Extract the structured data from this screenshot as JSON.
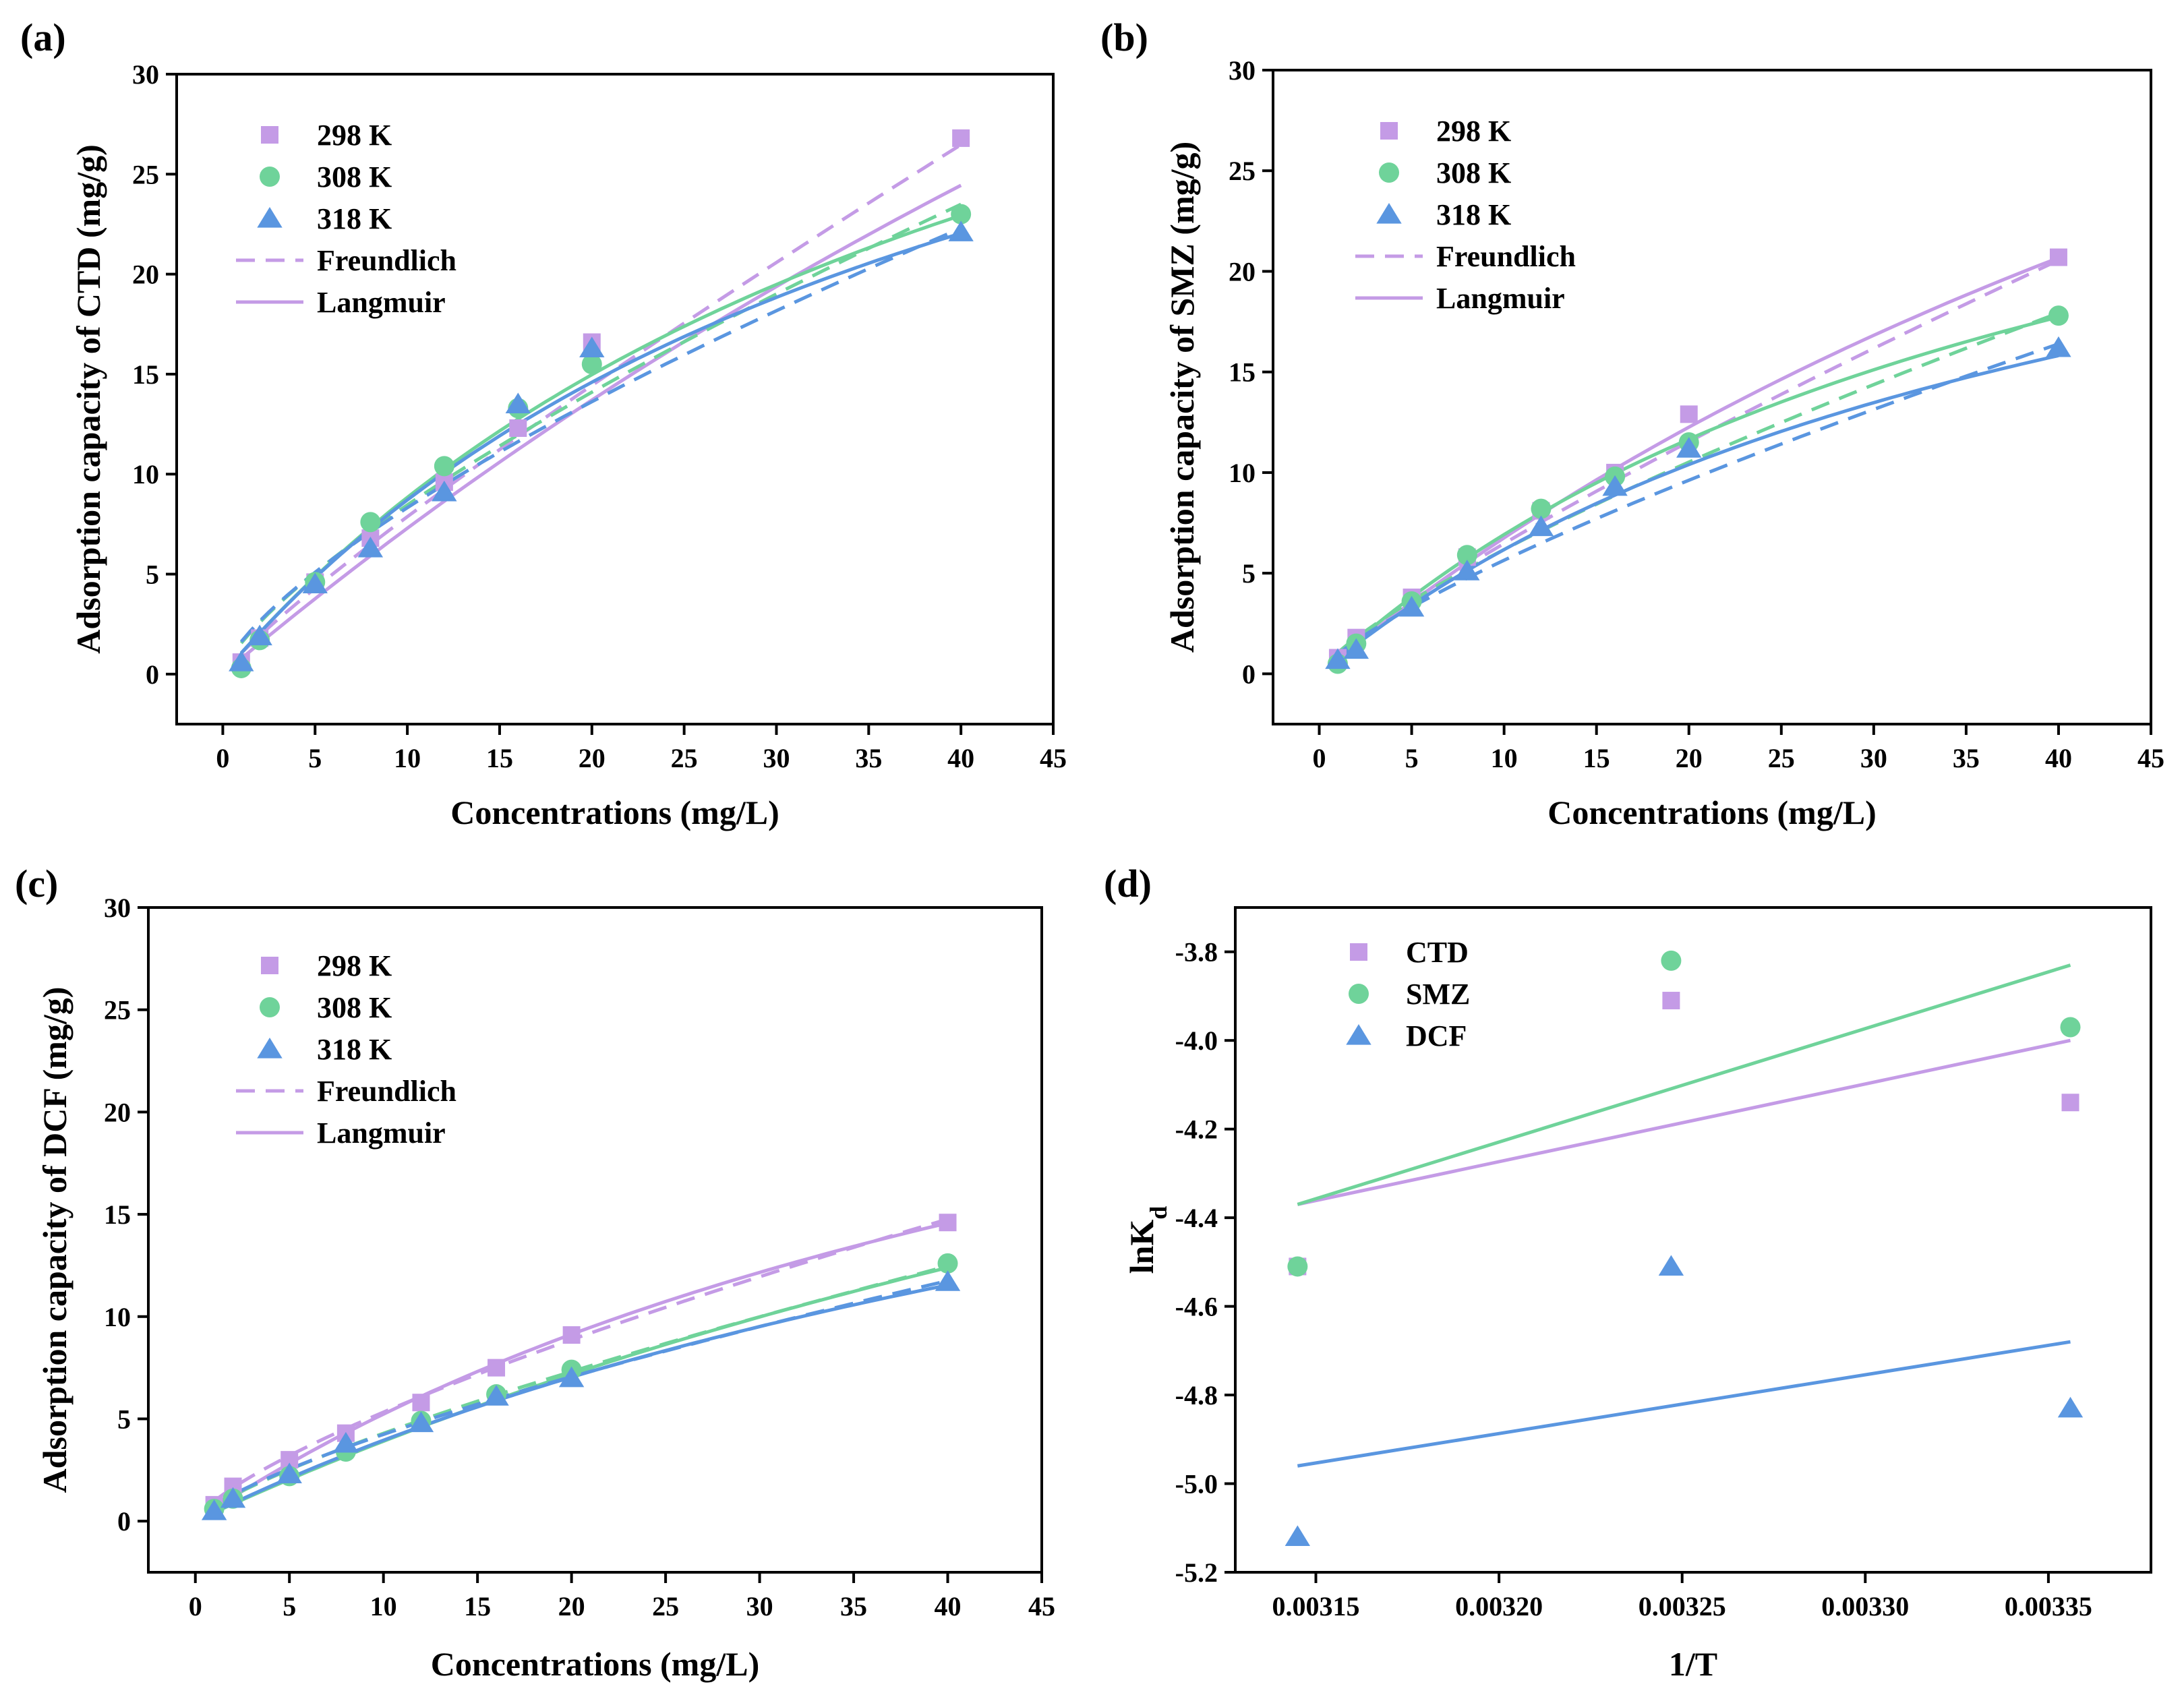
{
  "colors": {
    "298 K": "#c49be6",
    "308 K": "#6fd39a",
    "318 K": "#5a96e0",
    "CTD": "#c49be6",
    "SMZ": "#6fd39a",
    "DCF": "#5a96e0"
  },
  "chart_data": [
    {
      "panel": "(a)",
      "type": "scatter",
      "xlabel": "Concentrations (mg/L)",
      "ylabel": "Adsorption capacity of CTD (mg/g)",
      "xlim": [
        -2.5,
        45
      ],
      "ylim": [
        -2.5,
        30
      ],
      "xticks": [
        "0",
        "5",
        "10",
        "15",
        "20",
        "25",
        "30",
        "35",
        "40",
        "45"
      ],
      "yticks": [
        "0",
        "5",
        "10",
        "15",
        "20",
        "25",
        "30"
      ],
      "legend": [
        "298 K",
        "308 K",
        "318 K",
        "Freundlich",
        "Langmuir"
      ],
      "legend_position": "top-left",
      "series": [
        {
          "name": "298 K",
          "marker": "square",
          "x": [
            1,
            2,
            5,
            8,
            12,
            16,
            20,
            40
          ],
          "y": [
            0.6,
            1.8,
            4.6,
            6.8,
            9.6,
            12.3,
            16.6,
            26.8
          ],
          "freundlich": {
            "kf": 1.05,
            "n": 1.143
          },
          "langmuir": {
            "qm": 113,
            "kl": 0.0069
          }
        },
        {
          "name": "308 K",
          "marker": "circle",
          "x": [
            1,
            2,
            5,
            8,
            12,
            16,
            20,
            40
          ],
          "y": [
            0.3,
            1.7,
            4.6,
            7.6,
            10.4,
            13.3,
            15.5,
            23.0
          ],
          "freundlich": {
            "kf": 1.55,
            "n": 1.357
          },
          "langmuir": {
            "qm": 49,
            "kl": 0.022
          }
        },
        {
          "name": "318 K",
          "marker": "triangle",
          "x": [
            1,
            2,
            5,
            8,
            12,
            16,
            20,
            40
          ],
          "y": [
            0.6,
            1.9,
            4.5,
            6.3,
            9.1,
            13.5,
            16.3,
            22.1
          ],
          "freundlich": {
            "kf": 1.62,
            "n": 1.407
          },
          "langmuir": {
            "qm": 45,
            "kl": 0.024
          }
        }
      ]
    },
    {
      "panel": "(b)",
      "type": "scatter",
      "xlabel": "Concentrations (mg/L)",
      "ylabel": "Adsorption capacity of SMZ (mg/g)",
      "xlim": [
        -2.5,
        45
      ],
      "ylim": [
        -2.5,
        30
      ],
      "xticks": [
        "0",
        "5",
        "10",
        "15",
        "20",
        "25",
        "30",
        "35",
        "40",
        "45"
      ],
      "yticks": [
        "0",
        "5",
        "10",
        "15",
        "20",
        "25",
        "30"
      ],
      "legend": [
        "298 K",
        "308 K",
        "318 K",
        "Freundlich",
        "Langmuir"
      ],
      "legend_position": "top-left",
      "series": [
        {
          "name": "298 K",
          "marker": "square",
          "x": [
            1,
            2,
            5,
            8,
            12,
            16,
            20,
            40
          ],
          "y": [
            0.8,
            1.8,
            3.8,
            5.8,
            8.1,
            10.0,
            12.9,
            20.7
          ],
          "freundlich": {
            "kf": 0.95,
            "n": 1.2
          },
          "langmuir": {
            "qm": 66,
            "kl": 0.0114
          }
        },
        {
          "name": "308 K",
          "marker": "circle",
          "x": [
            1,
            2,
            5,
            8,
            12,
            16,
            20,
            40
          ],
          "y": [
            0.5,
            1.5,
            3.6,
            5.9,
            8.2,
            9.8,
            11.5,
            17.8
          ],
          "freundlich": {
            "kf": 1.05,
            "n": 1.3
          },
          "langmuir": {
            "qm": 37,
            "kl": 0.023
          }
        },
        {
          "name": "318 K",
          "marker": "triangle",
          "x": [
            1,
            2,
            5,
            8,
            12,
            16,
            20,
            40
          ],
          "y": [
            0.7,
            1.2,
            3.3,
            5.1,
            7.3,
            9.3,
            11.2,
            16.2
          ],
          "freundlich": {
            "kf": 0.96,
            "n": 1.3
          },
          "langmuir": {
            "qm": 33,
            "kl": 0.023
          }
        }
      ]
    },
    {
      "panel": "(c)",
      "type": "scatter",
      "xlabel": "Concentrations (mg/L)",
      "ylabel": "Adsorption capacity of DCF (mg/g)",
      "xlim": [
        -2.5,
        45
      ],
      "ylim": [
        -2.5,
        30
      ],
      "xticks": [
        "0",
        "5",
        "10",
        "15",
        "20",
        "25",
        "30",
        "35",
        "40",
        "45"
      ],
      "yticks": [
        "0",
        "5",
        "10",
        "15",
        "20",
        "25",
        "30"
      ],
      "legend": [
        "298 K",
        "308 K",
        "318 K",
        "Freundlich",
        "Langmuir"
      ],
      "legend_position": "top-left",
      "series": [
        {
          "name": "298 K",
          "marker": "square",
          "x": [
            1,
            2,
            5,
            8,
            12,
            16,
            20,
            40
          ],
          "y": [
            0.8,
            1.7,
            3.0,
            4.3,
            5.8,
            7.5,
            9.1,
            14.6
          ],
          "freundlich": {
            "kf": 0.98,
            "n": 1.36
          },
          "langmuir": {
            "qm": 36,
            "kl": 0.017
          }
        },
        {
          "name": "308 K",
          "marker": "circle",
          "x": [
            1,
            2,
            5,
            8,
            12,
            16,
            20,
            40
          ],
          "y": [
            0.6,
            1.1,
            2.2,
            3.4,
            4.9,
            6.2,
            7.4,
            12.6
          ],
          "freundlich": {
            "kf": 0.73,
            "n": 1.3
          },
          "langmuir": {
            "qm": 45,
            "kl": 0.0095
          }
        },
        {
          "name": "318 K",
          "marker": "triangle",
          "x": [
            1,
            2,
            5,
            8,
            12,
            16,
            20,
            40
          ],
          "y": [
            0.5,
            1.1,
            2.3,
            3.8,
            4.8,
            6.1,
            7.0,
            11.7
          ],
          "freundlich": {
            "kf": 0.78,
            "n": 1.36
          },
          "langmuir": {
            "qm": 32,
            "kl": 0.0141
          }
        }
      ]
    },
    {
      "panel": "(d)",
      "type": "scatter",
      "xlabel": "1/T",
      "ylabel": "lnK",
      "ylabel_sub": "d",
      "xlim": [
        0.003128,
        0.003378
      ],
      "ylim": [
        -5.2,
        -3.7
      ],
      "xticks": [
        "0.00315",
        "0.00320",
        "0.00325",
        "0.00330",
        "0.00335"
      ],
      "yticks": [
        "-3.8",
        "-4.0",
        "-4.2",
        "-4.4",
        "-4.6",
        "-4.8",
        "-5.0",
        "-5.2"
      ],
      "legend": [
        "CTD",
        "SMZ",
        "DCF"
      ],
      "legend_position": "top-left",
      "series": [
        {
          "name": "CTD",
          "marker": "square",
          "x": [
            0.003145,
            0.003247,
            0.003356
          ],
          "y": [
            -4.51,
            -3.91,
            -4.14
          ],
          "fit": {
            "x": [
              0.003145,
              0.003356
            ],
            "y": [
              -4.37,
              -4.0
            ]
          }
        },
        {
          "name": "SMZ",
          "marker": "circle",
          "x": [
            0.003145,
            0.003247,
            0.003356
          ],
          "y": [
            -4.51,
            -3.82,
            -3.97
          ],
          "fit": {
            "x": [
              0.003145,
              0.003356
            ],
            "y": [
              -4.37,
              -3.83
            ]
          }
        },
        {
          "name": "DCF",
          "marker": "triangle",
          "x": [
            0.003145,
            0.003247,
            0.003356
          ],
          "y": [
            -5.12,
            -4.51,
            -4.83
          ],
          "fit": {
            "x": [
              0.003145,
              0.003356
            ],
            "y": [
              -4.96,
              -4.68
            ]
          }
        }
      ]
    }
  ]
}
